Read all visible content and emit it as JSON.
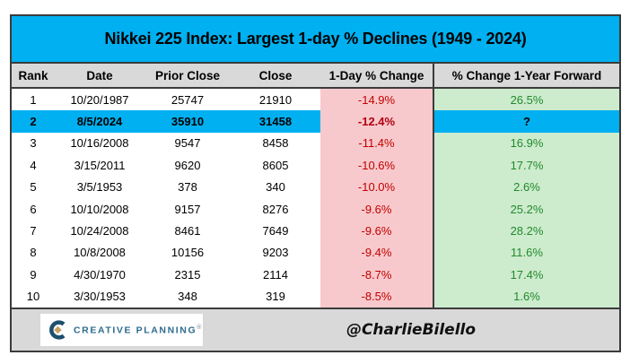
{
  "title": "Nikkei 225 Index: Largest 1-day % Declines (1949 - 2024)",
  "chart_data": {
    "type": "table",
    "title": "Nikkei 225 Index: Largest 1-day % Declines (1949 - 2024)",
    "columns": [
      "Rank",
      "Date",
      "Prior Close",
      "Close",
      "1-Day % Change",
      "% Change 1-Year Forward"
    ],
    "rows": [
      [
        "1",
        "10/20/1987",
        "25747",
        "21910",
        "-14.9%",
        "26.5%"
      ],
      [
        "2",
        "8/5/2024",
        "35910",
        "31458",
        "-12.4%",
        "?"
      ],
      [
        "3",
        "10/16/2008",
        "9547",
        "8458",
        "-11.4%",
        "16.9%"
      ],
      [
        "4",
        "3/15/2011",
        "9620",
        "8605",
        "-10.6%",
        "17.7%"
      ],
      [
        "5",
        "3/5/1953",
        "378",
        "340",
        "-10.0%",
        "2.6%"
      ],
      [
        "6",
        "10/10/2008",
        "9157",
        "8276",
        "-9.6%",
        "25.2%"
      ],
      [
        "7",
        "10/24/2008",
        "8461",
        "7649",
        "-9.6%",
        "28.2%"
      ],
      [
        "8",
        "10/8/2008",
        "10156",
        "9203",
        "-9.4%",
        "11.6%"
      ],
      [
        "9",
        "4/30/1970",
        "2315",
        "2114",
        "-8.7%",
        "17.4%"
      ],
      [
        "10",
        "3/30/1953",
        "348",
        "319",
        "-8.5%",
        "1.6%"
      ]
    ],
    "highlighted_row_rank": "2",
    "legend_position": "none",
    "grid": false
  },
  "footer": {
    "logo_text": "CREATIVE PLANNING",
    "logo_mark": "®",
    "handle": "@CharlieBilello"
  },
  "colors": {
    "accent_cyan": "#00B0F0",
    "header_gray": "#D9D9D9",
    "decline_bg_pink": "#F8C9CC",
    "decline_text_red": "#C00000",
    "forward_bg_green": "#CDEBCD",
    "forward_text_green": "#218A2C",
    "border_dark": "#3B3B3B",
    "logo_blue": "#2E6B8F",
    "logo_gold": "#C9A063"
  }
}
